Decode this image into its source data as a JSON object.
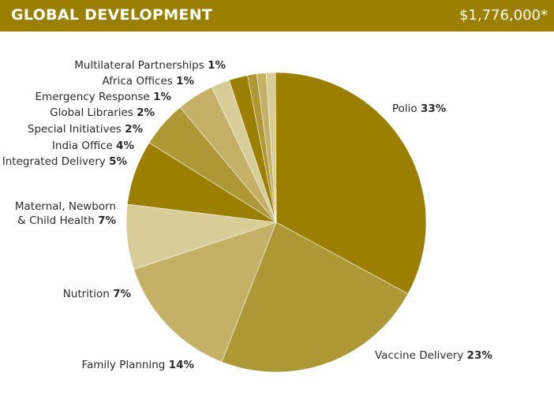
{
  "header": {
    "title": "GLOBAL DEVELOPMENT",
    "amount": "$1,776,000*"
  },
  "colors": {
    "header": "#9b7f00"
  },
  "chart_data": {
    "type": "pie",
    "title": "GLOBAL DEVELOPMENT",
    "total": "$1,776,000*",
    "slices": [
      {
        "label": "Polio",
        "value": 33,
        "pct_label": "33%",
        "color": "#9b7f00"
      },
      {
        "label": "Vaccine Delivery",
        "value": 23,
        "pct_label": "23%",
        "color": "#ae9735"
      },
      {
        "label": "Family Planning",
        "value": 14,
        "pct_label": "14%",
        "color": "#c4b166"
      },
      {
        "label": "Nutrition",
        "value": 7,
        "pct_label": "7%",
        "color": "#d8cc99"
      },
      {
        "label": "Maternal, Newborn & Child Health",
        "value": 7,
        "pct_label": "7%",
        "label_lines": [
          "Maternal, Newborn",
          "& Child Health"
        ],
        "color": "#9b7f00"
      },
      {
        "label": "Integrated Delivery",
        "value": 5,
        "pct_label": "5%",
        "color": "#ae9735"
      },
      {
        "label": "India Office",
        "value": 4,
        "pct_label": "4%",
        "color": "#c4b166"
      },
      {
        "label": "Special Initiatives",
        "value": 2,
        "pct_label": "2%",
        "color": "#d8cc99"
      },
      {
        "label": "Global Libraries",
        "value": 2,
        "pct_label": "2%",
        "color": "#9b7f00"
      },
      {
        "label": "Emergency Response",
        "value": 1,
        "pct_label": "1%",
        "color": "#ae9735"
      },
      {
        "label": "Africa Offices",
        "value": 1,
        "pct_label": "1%",
        "color": "#c4b166"
      },
      {
        "label": "Multilateral Partnerships",
        "value": 1,
        "pct_label": "1%",
        "color": "#d8cc99"
      }
    ]
  }
}
